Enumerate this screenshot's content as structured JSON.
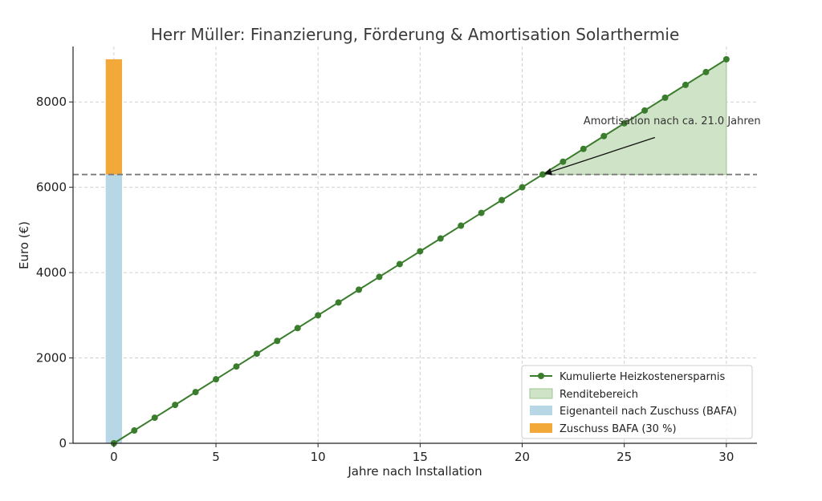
{
  "chart_data": {
    "type": "line",
    "title": "Herr Müller: Finanzierung, Förderung & Amortisation Solarthermie",
    "xlabel": "Jahre nach Installation",
    "ylabel": "Euro (€)",
    "xlim": [
      -2,
      31.5
    ],
    "ylim": [
      0,
      9300
    ],
    "xticks": [
      0,
      5,
      10,
      15,
      20,
      25,
      30
    ],
    "yticks": [
      0,
      2000,
      4000,
      6000,
      8000
    ],
    "grid": true,
    "legend_position": "lower-right",
    "series": [
      {
        "name": "Kumulierte Heizkostenersparnis",
        "color": "#3a7d2c",
        "x": [
          0,
          1,
          2,
          3,
          4,
          5,
          6,
          7,
          8,
          9,
          10,
          11,
          12,
          13,
          14,
          15,
          16,
          17,
          18,
          19,
          20,
          21,
          22,
          23,
          24,
          25,
          26,
          27,
          28,
          29,
          30
        ],
        "y": [
          0,
          300,
          600,
          900,
          1200,
          1500,
          1800,
          2100,
          2400,
          2700,
          3000,
          3300,
          3600,
          3900,
          4200,
          4500,
          4800,
          5100,
          5400,
          5700,
          6000,
          6300,
          6600,
          6900,
          7200,
          7500,
          7800,
          8100,
          8400,
          8700,
          9000
        ]
      }
    ],
    "renditebereich": {
      "name": "Renditebereich",
      "color": "#cfe3c6",
      "x_from": 21,
      "x_to": 30
    },
    "bars": [
      {
        "name": "Eigenanteil nach Zuschuss (BAFA)",
        "x": 0,
        "bottom": 0,
        "value": 6300,
        "color": "#b7d7e6"
      },
      {
        "name": "Zuschuss BAFA (30 %)",
        "x": 0,
        "bottom": 6300,
        "value": 2700,
        "color": "#f3a83a"
      }
    ],
    "hline": {
      "y": 6300,
      "color": "#7a7a7a"
    },
    "annotation": {
      "text": "Amortisation nach ca. 21.0 Jahren",
      "point": [
        21,
        6300
      ],
      "text_anchor": [
        26.5,
        7300
      ]
    }
  }
}
